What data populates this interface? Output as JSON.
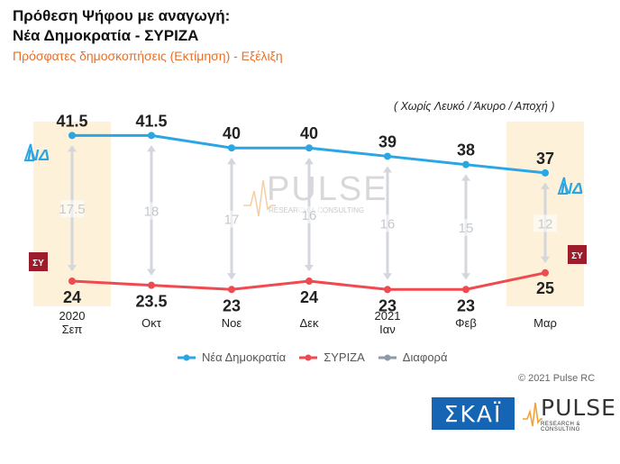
{
  "header": {
    "title_line1": "Πρόθεση Ψήφου με αναγωγή:",
    "title_line2": "Νέα Δημοκρατία - ΣΥΡΙΖΑ",
    "subtitle": "Πρόσφατες δημοσκοπήσεις (Εκτίμηση) - Εξέλιξη",
    "note": "( Χωρίς Λευκό / Άκυρο / Αποχή )"
  },
  "chart_data": {
    "type": "line",
    "categories": [
      [
        "2020",
        "Σεπ"
      ],
      [
        "Οκτ"
      ],
      [
        "Noε"
      ],
      [
        "Δεκ"
      ],
      [
        "2021",
        "Ιαν"
      ],
      [
        "Φεβ"
      ],
      [
        "Μαρ"
      ]
    ],
    "series": [
      {
        "name": "Νέα Δημοκρατία",
        "values": [
          "41.5",
          "41.5",
          "40",
          "40",
          "39",
          "38",
          "37"
        ],
        "color": "#2aa6e4"
      },
      {
        "name": "ΣΥΡΙΖΑ",
        "values": [
          "24",
          "23.5",
          "23",
          "24",
          "23",
          "23",
          "25"
        ],
        "color": "#ef4a4f"
      },
      {
        "name": "Διαφορά",
        "values": [
          "17.5",
          "18",
          "17",
          "16",
          "16",
          "15",
          "12"
        ],
        "color": "#8f9aa6"
      }
    ],
    "highlighted_categories": [
      0,
      6
    ],
    "ylim": [
      20,
      45
    ]
  },
  "badges": {
    "nd": "ΝΔ",
    "syriza": "ΣΥ"
  },
  "watermark": {
    "word": "PULSE",
    "sub": "RESEARCH & CONSULTING"
  },
  "footer": {
    "copyright": "© 2021 Pulse RC",
    "skai_logo": "ΣΚΑΪ",
    "pulse_logo": "PULSE",
    "pulse_logo_sub": "RESEARCH & CONSULTING"
  },
  "colors": {
    "nd": "#2aa6e4",
    "syriza": "#ef4a4f",
    "diff": "#8f9aa6",
    "highlight": "#fdf1da",
    "subtitle": "#e8702a"
  }
}
